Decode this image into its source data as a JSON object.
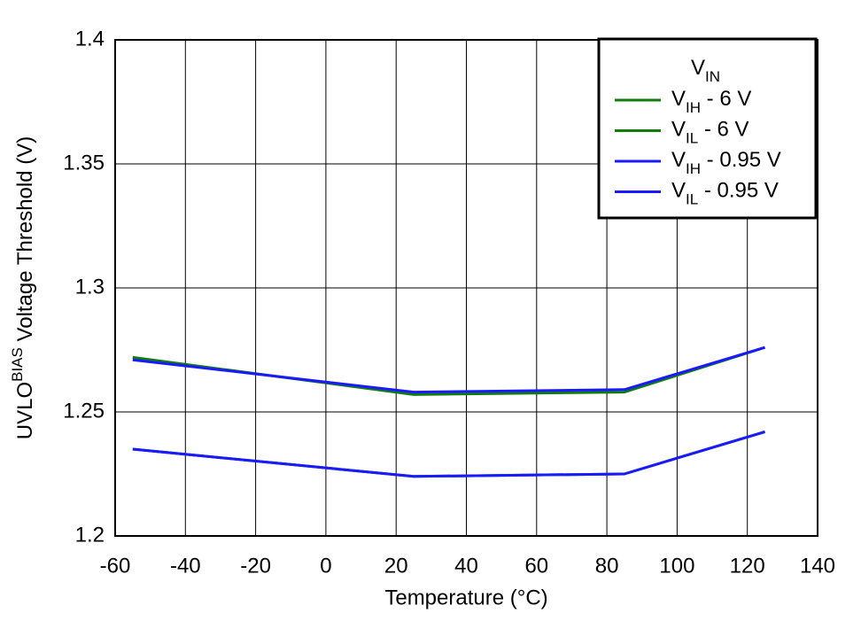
{
  "chart_data": {
    "type": "line",
    "x_label": "Temperature (°C)",
    "y_label": [
      "UVLO",
      "BIAS",
      " Voltage Threshold (V)"
    ],
    "legend_title": [
      "V",
      "IN"
    ],
    "legend": "upper right",
    "grid": true,
    "x": [
      -55,
      25,
      85,
      125
    ],
    "series": [
      {
        "name": [
          "V",
          "IH",
          " - 6 V"
        ],
        "color": "#107c10",
        "values": [
          1.272,
          1.257,
          1.258,
          1.276
        ]
      },
      {
        "name": [
          "V",
          "IL",
          " - 6 V"
        ],
        "color": "#107c10",
        "values": [
          1.235,
          1.224,
          1.225,
          1.242
        ]
      },
      {
        "name": [
          "V",
          "IH",
          " - 0.95 V"
        ],
        "color": "#1a1aff",
        "values": [
          1.271,
          1.258,
          1.259,
          1.276
        ]
      },
      {
        "name": [
          "V",
          "IL",
          " - 0.95 V"
        ],
        "color": "#1a1aff",
        "values": [
          1.235,
          1.224,
          1.225,
          1.242
        ]
      }
    ],
    "xlim": [
      -60,
      140
    ],
    "xticks": [
      -60,
      -40,
      -20,
      0,
      20,
      40,
      60,
      80,
      100,
      120,
      140
    ],
    "ylim": [
      1.2,
      1.4
    ],
    "yticks": [
      1.2,
      1.25,
      1.3,
      1.35,
      1.4
    ]
  }
}
